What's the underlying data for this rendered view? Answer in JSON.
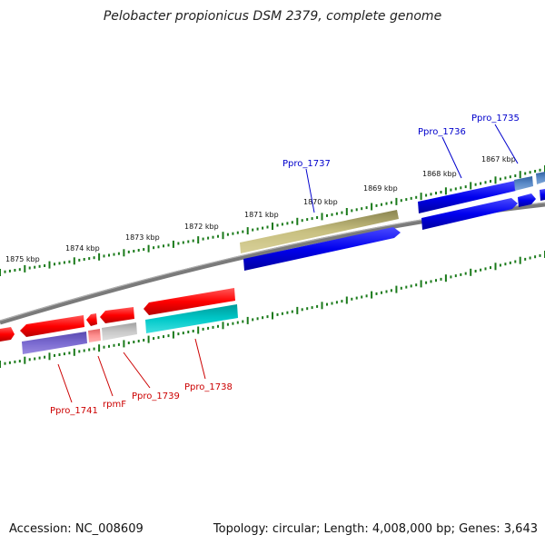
{
  "title": "Pelobacter propionicus DSM 2379, complete genome",
  "footer": {
    "accession": "Accession: NC_008609",
    "summary": "Topology: circular; Length: 4,008,000 bp; Genes: 3,643"
  },
  "scale_labels": [
    "1875 kbp",
    "1874 kbp",
    "1873 kbp",
    "1872 kbp",
    "1871 kbp",
    "1870 kbp",
    "1869 kbp",
    "1868 kbp",
    "1867 kbp"
  ],
  "gene_labels": {
    "top": [
      "Ppro_1737",
      "Ppro_1736",
      "Ppro_1735"
    ],
    "bottom": [
      "Ppro_1741",
      "rpmF",
      "Ppro_1739",
      "Ppro_1738"
    ]
  },
  "colors": {
    "top_label": "#0000cc",
    "bottom_label": "#cc0000",
    "backbone": "#808080",
    "ticks": "#1a7a1a"
  }
}
